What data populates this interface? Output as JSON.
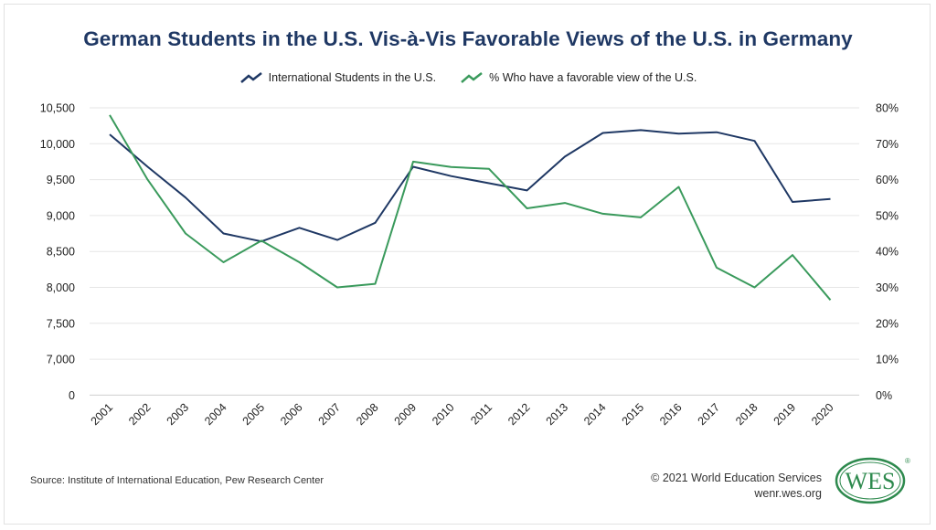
{
  "chart_data": {
    "type": "line",
    "title": "German Students in the U.S. Vis-à-Vis Favorable Views of the U.S. in Germany",
    "categories": [
      "2001",
      "2002",
      "2003",
      "2004",
      "2005",
      "2006",
      "2007",
      "2008",
      "2009",
      "2010",
      "2011",
      "2012",
      "2013",
      "2014",
      "2015",
      "2016",
      "2017",
      "2018",
      "2019",
      "2020"
    ],
    "series": [
      {
        "name": "International Students in the U.S.",
        "axis": "left",
        "color": "#1f3864",
        "values": [
          10130,
          9680,
          9250,
          8750,
          8640,
          8830,
          8660,
          8900,
          9680,
          9550,
          9450,
          9350,
          9820,
          10150,
          10190,
          10140,
          10160,
          10040,
          9190,
          9230
        ]
      },
      {
        "name": "% Who have a favorable view of the U.S.",
        "axis": "right",
        "color": "#3a9a5c",
        "values": [
          78,
          60,
          45,
          37,
          43,
          37,
          30,
          31,
          65,
          63.5,
          63,
          52,
          53.5,
          50.5,
          49.5,
          58,
          35.5,
          30,
          39,
          26.5
        ]
      }
    ],
    "left_axis": {
      "ticks": [
        0,
        7000,
        7500,
        8000,
        8500,
        9000,
        9500,
        10000,
        10500
      ],
      "tick_labels": [
        "0",
        "7,000",
        "7,500",
        "8,000",
        "8,500",
        "9,000",
        "9,500",
        "10,000",
        "10,500"
      ],
      "broken": true,
      "range": [
        6500,
        10500
      ]
    },
    "right_axis": {
      "ticks": [
        0,
        10,
        20,
        30,
        40,
        50,
        60,
        70,
        80
      ],
      "tick_labels": [
        "0%",
        "10%",
        "20%",
        "30%",
        "40%",
        "50%",
        "60%",
        "70%",
        "80%"
      ],
      "range": [
        0,
        80
      ]
    },
    "grid": true,
    "legend_position": "top-center",
    "source": "Source: Institute of International Education, Pew Research Center"
  },
  "footer": {
    "copyright": "© 2021 World Education Services",
    "website": "wenr.wes.org",
    "logo_text": "WES",
    "logo_mark": "®"
  },
  "colors": {
    "title": "#1f3864",
    "navy": "#1f3864",
    "green": "#3a9a5c"
  }
}
